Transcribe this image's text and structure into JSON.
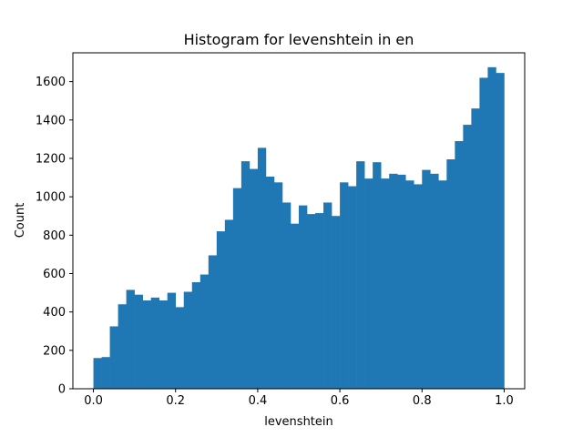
{
  "chart_data": {
    "type": "bar",
    "title": "Histogram for levenshtein in en",
    "xlabel": "levenshtein",
    "ylabel": "Count",
    "xlim": [
      -0.05,
      1.05
    ],
    "ylim": [
      0,
      1750
    ],
    "bin_start": 0.0,
    "bin_width": 0.02,
    "bar_color": "#1f77b4",
    "x_ticks": [
      "0.0",
      "0.2",
      "0.4",
      "0.6",
      "0.8",
      "1.0"
    ],
    "y_ticks": [
      "0",
      "200",
      "400",
      "600",
      "800",
      "1000",
      "1200",
      "1400",
      "1600"
    ],
    "values": [
      160,
      165,
      325,
      440,
      515,
      490,
      460,
      475,
      460,
      500,
      425,
      505,
      555,
      595,
      695,
      820,
      880,
      1045,
      1185,
      1145,
      1255,
      1105,
      1075,
      970,
      860,
      955,
      910,
      915,
      970,
      900,
      1075,
      1055,
      1185,
      1095,
      1180,
      1095,
      1120,
      1115,
      1085,
      1065,
      1140,
      1120,
      1085,
      1195,
      1290,
      1375,
      1460,
      1620,
      1675,
      1645
    ]
  }
}
